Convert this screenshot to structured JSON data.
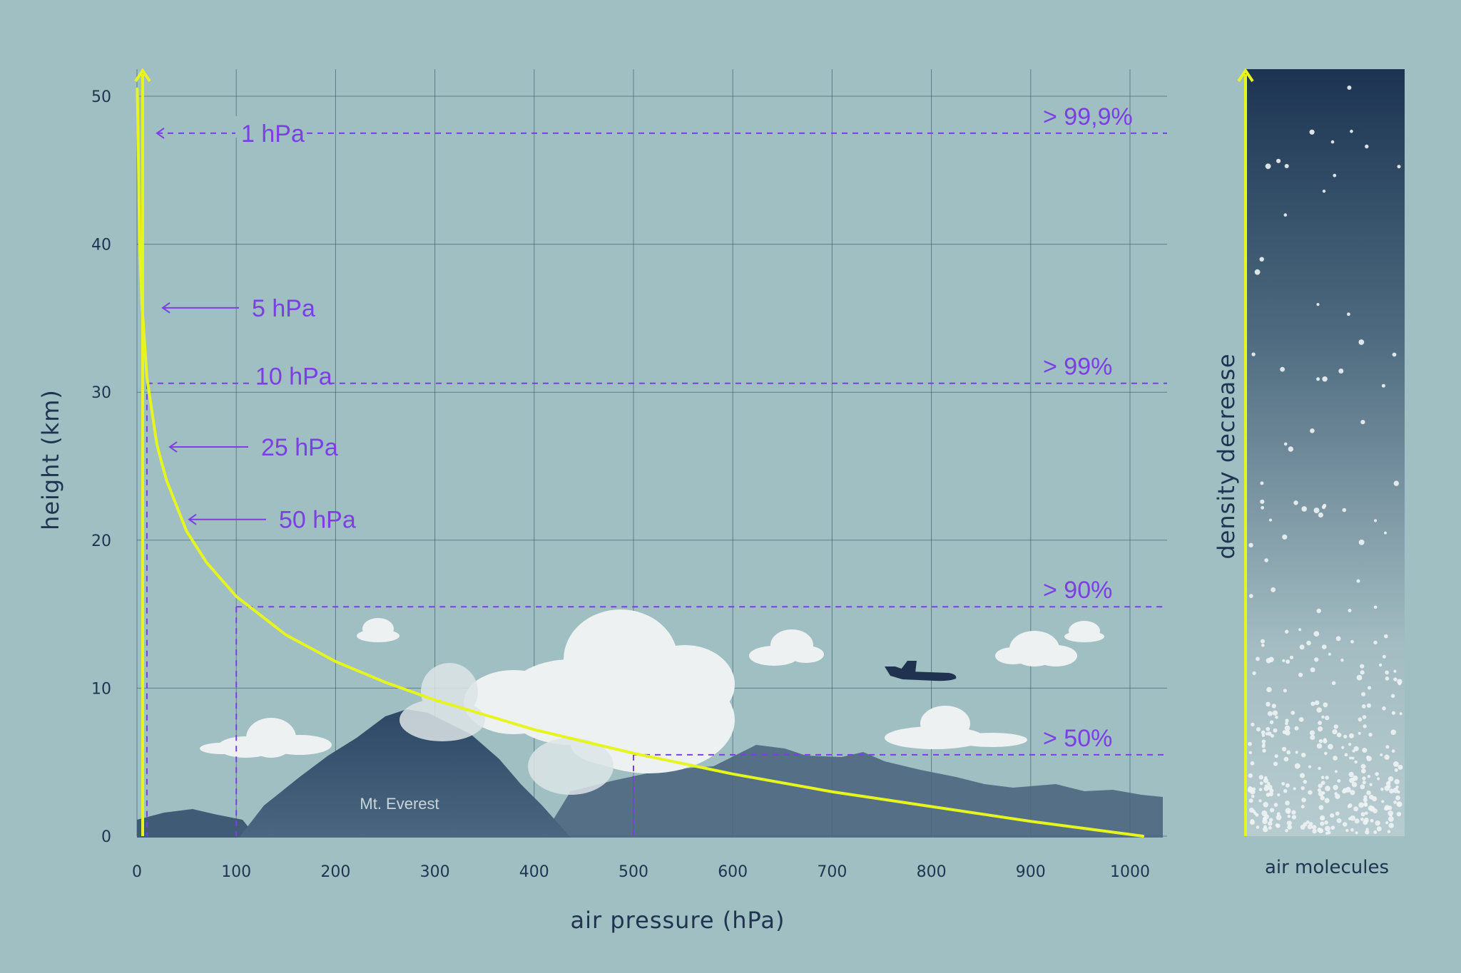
{
  "colors": {
    "background": "#a0bfc2",
    "curve": "#e6f51f",
    "annotation": "#7b3fe4",
    "grid": "#2e4a5a",
    "text": "#1e3450",
    "mountain": "#34506a",
    "cloud": "#eef1f1",
    "plane": "#1f3350"
  },
  "chart_data": {
    "type": "line",
    "xlabel": "air pressure (hPa)",
    "ylabel": "height (km)",
    "xlim": [
      0,
      1030
    ],
    "ylim": [
      0,
      50
    ],
    "x_ticks": [
      "0",
      "100",
      "200",
      "300",
      "400",
      "500",
      "600",
      "700",
      "800",
      "900",
      "1000"
    ],
    "y_ticks": [
      "0",
      "10",
      "20",
      "30",
      "40",
      "50"
    ],
    "grid": true,
    "series": [
      {
        "x": [
          1013,
          900,
          800,
          700,
          600,
          500,
          400,
          300,
          250,
          200,
          150,
          100,
          70,
          50,
          30,
          25,
          20,
          10,
          5,
          3,
          2,
          1
        ],
        "y": [
          0,
          1,
          2,
          3,
          4.2,
          5.6,
          7.2,
          9.2,
          10.4,
          11.8,
          13.6,
          16.2,
          18.5,
          20.6,
          24,
          25.2,
          26.5,
          31,
          36,
          39.5,
          43,
          48
        ]
      }
    ],
    "pressure_arrows": [
      {
        "label": "1 hPa",
        "y": 47.5
      },
      {
        "label": "5 hPa",
        "y": 35.7
      },
      {
        "label": "25 hPa",
        "y": 26.3
      },
      {
        "label": "50 hPa",
        "y": 21.4
      }
    ],
    "reference_lines": [
      {
        "label": "10 hPa",
        "pressure": 10,
        "height": 30.6
      },
      {
        "label": "",
        "pressure": 100,
        "height": 15.5
      },
      {
        "label": "",
        "pressure": 500,
        "height": 5.5
      }
    ],
    "percent_labels": [
      {
        "label": "> 99,9%",
        "y": 47.5
      },
      {
        "label": "> 99%",
        "y": 30.6
      },
      {
        "label": "> 90%",
        "y": 15.5
      },
      {
        "label": "> 50%",
        "y": 5.5
      }
    ],
    "annotations": {
      "mountain": "Mt. Everest"
    }
  },
  "side_panel": {
    "title": "density decrease",
    "caption": "air molecules"
  }
}
